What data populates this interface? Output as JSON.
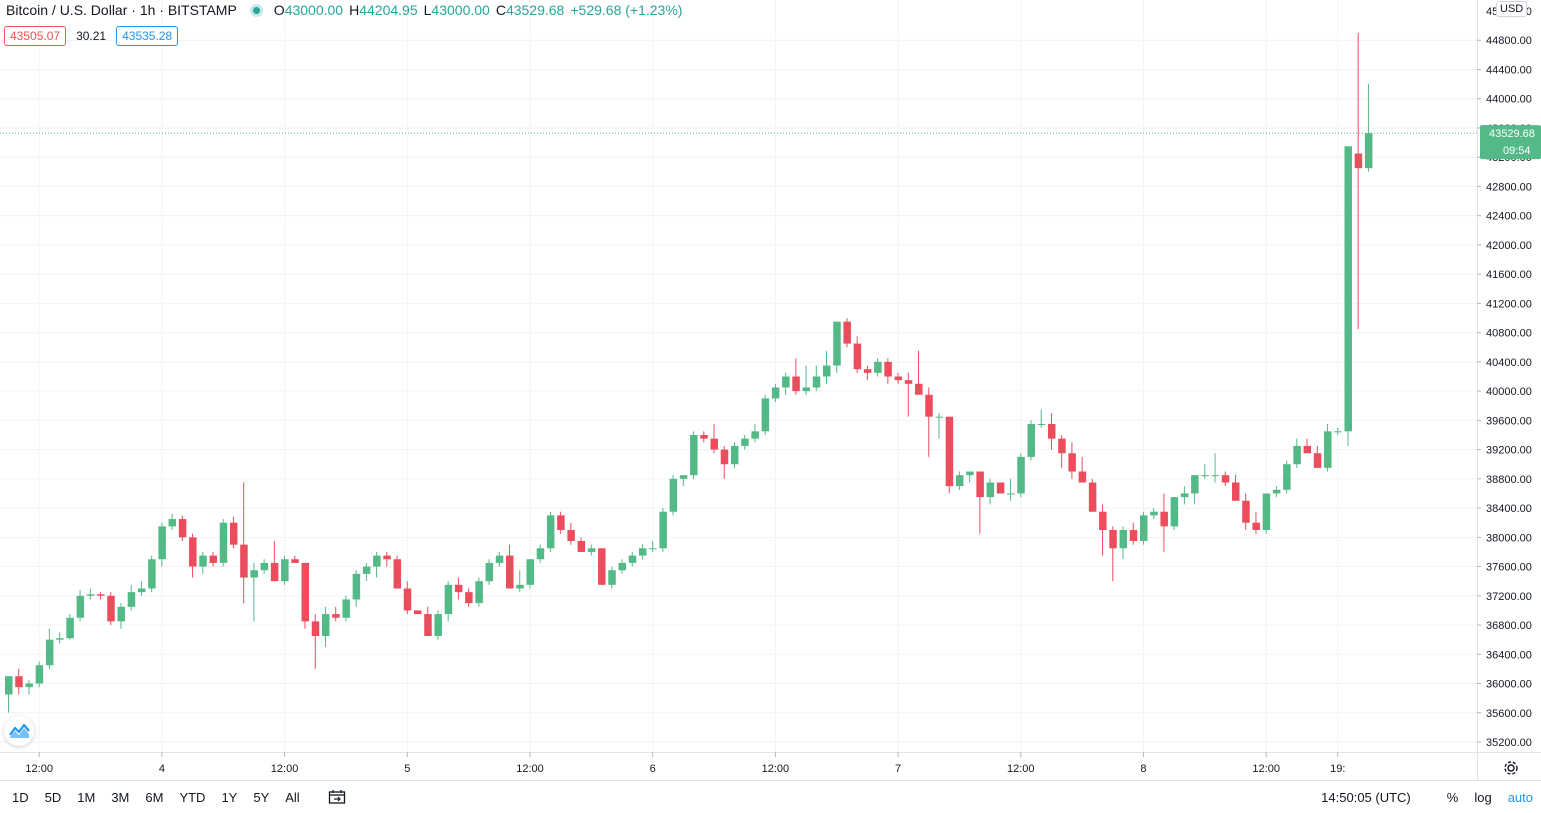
{
  "header": {
    "symbol": "Bitcoin / U.S. Dollar · 1h · BITSTAMP",
    "o_label": "O",
    "o_value": "43000.00",
    "h_label": "H",
    "h_value": "44204.95",
    "l_label": "L",
    "l_value": "43000.00",
    "c_label": "C",
    "c_value": "43529.68",
    "change": "+529.68 (+1.23%)"
  },
  "quote": {
    "bid": "43505.07",
    "spread": "30.21",
    "ask": "43535.28"
  },
  "price_axis": {
    "currency": "USD",
    "last_price": "43529.68",
    "countdown": "09:54",
    "top_partial": "45200.00"
  },
  "bottom_bar": {
    "timeframes": [
      "1D",
      "5D",
      "1M",
      "3M",
      "6M",
      "YTD",
      "1Y",
      "5Y",
      "All"
    ],
    "clock": "14:50:05 (UTC)",
    "percent": "%",
    "log": "log",
    "auto": "auto"
  },
  "colors": {
    "up": "#26a69a",
    "up_body": "#53b987",
    "down": "#eb4d5c",
    "grid": "#f0f3fa",
    "last_price_bg": "#53b987"
  },
  "icons": {
    "calendar": "calendar-range-icon",
    "settings": "gear-icon",
    "logo": "tradingview-logo-icon",
    "status": "market-open-dot-icon"
  },
  "chart_data": {
    "type": "candlestick",
    "title": "Bitcoin / U.S. Dollar · 1h · BITSTAMP",
    "xlabel": "",
    "ylabel": "",
    "ylim": [
      35000,
      45200
    ],
    "y_ticks": [
      35200,
      35600,
      36000,
      36400,
      36800,
      37200,
      37600,
      38000,
      38400,
      38800,
      39200,
      39600,
      40000,
      40400,
      40800,
      41200,
      41600,
      42000,
      42400,
      42800,
      43200,
      43600,
      44000,
      44400,
      44800
    ],
    "x_tick_labels": [
      "12:00",
      "4",
      "12:00",
      "5",
      "12:00",
      "6",
      "12:00",
      "7",
      "12:00",
      "8",
      "12:00",
      "19:"
    ],
    "x_tick_candle_index": [
      3,
      15,
      27,
      39,
      51,
      63,
      75,
      87,
      99,
      111,
      123,
      130
    ],
    "last_price": 43529.68,
    "candles": [
      [
        35850,
        36100,
        35600,
        36100
      ],
      [
        36100,
        36200,
        35850,
        35950
      ],
      [
        35950,
        36050,
        35850,
        36000
      ],
      [
        36000,
        36300,
        35950,
        36250
      ],
      [
        36250,
        36750,
        36200,
        36600
      ],
      [
        36600,
        36700,
        36550,
        36620
      ],
      [
        36620,
        36950,
        36600,
        36900
      ],
      [
        36900,
        37280,
        36850,
        37200
      ],
      [
        37200,
        37300,
        37150,
        37220
      ],
      [
        37220,
        37250,
        37150,
        37200
      ],
      [
        37200,
        37250,
        36800,
        36850
      ],
      [
        36850,
        37100,
        36750,
        37050
      ],
      [
        37050,
        37350,
        37000,
        37250
      ],
      [
        37250,
        37400,
        37200,
        37300
      ],
      [
        37300,
        37750,
        37250,
        37700
      ],
      [
        37700,
        38200,
        37600,
        38150
      ],
      [
        38150,
        38320,
        38100,
        38250
      ],
      [
        38250,
        38300,
        37950,
        38000
      ],
      [
        38000,
        38050,
        37450,
        37600
      ],
      [
        37600,
        37800,
        37500,
        37750
      ],
      [
        37750,
        37800,
        37600,
        37650
      ],
      [
        37650,
        38250,
        37600,
        38200
      ],
      [
        38200,
        38280,
        37850,
        37900
      ],
      [
        37900,
        38750,
        37100,
        37450
      ],
      [
        37450,
        37650,
        36850,
        37550
      ],
      [
        37550,
        37700,
        37500,
        37650
      ],
      [
        37650,
        37950,
        37400,
        37400
      ],
      [
        37400,
        37750,
        37350,
        37700
      ],
      [
        37700,
        37750,
        37650,
        37650
      ],
      [
        37650,
        37650,
        36750,
        36850
      ],
      [
        36850,
        36950,
        36200,
        36650
      ],
      [
        36650,
        37050,
        36500,
        36950
      ],
      [
        36950,
        37050,
        36850,
        36900
      ],
      [
        36900,
        37200,
        36850,
        37150
      ],
      [
        37150,
        37550,
        37050,
        37500
      ],
      [
        37500,
        37650,
        37400,
        37600
      ],
      [
        37600,
        37800,
        37450,
        37750
      ],
      [
        37750,
        37800,
        37600,
        37700
      ],
      [
        37700,
        37750,
        37300,
        37300
      ],
      [
        37300,
        37400,
        36950,
        37000
      ],
      [
        37000,
        37000,
        36950,
        36950
      ],
      [
        36950,
        37050,
        36650,
        36650
      ],
      [
        36650,
        37000,
        36600,
        36950
      ],
      [
        36950,
        37400,
        36850,
        37350
      ],
      [
        37350,
        37450,
        37150,
        37250
      ],
      [
        37250,
        37300,
        37050,
        37100
      ],
      [
        37100,
        37450,
        37050,
        37400
      ],
      [
        37400,
        37700,
        37350,
        37650
      ],
      [
        37650,
        37800,
        37600,
        37750
      ],
      [
        37750,
        37900,
        37300,
        37300
      ],
      [
        37300,
        37550,
        37250,
        37350
      ],
      [
        37350,
        37700,
        37300,
        37700
      ],
      [
        37700,
        37900,
        37650,
        37850
      ],
      [
        37850,
        38350,
        37800,
        38300
      ],
      [
        38300,
        38350,
        38050,
        38100
      ],
      [
        38100,
        38200,
        37900,
        37950
      ],
      [
        37950,
        38000,
        37800,
        37800
      ],
      [
        37800,
        37900,
        37750,
        37850
      ],
      [
        37850,
        37850,
        37350,
        37350
      ],
      [
        37350,
        37600,
        37300,
        37550
      ],
      [
        37550,
        37700,
        37500,
        37650
      ],
      [
        37650,
        37800,
        37600,
        37750
      ],
      [
        37750,
        37900,
        37700,
        37850
      ],
      [
        37850,
        37950,
        37800,
        37850
      ],
      [
        37850,
        38400,
        37800,
        38350
      ],
      [
        38350,
        38850,
        38300,
        38800
      ],
      [
        38800,
        38850,
        38700,
        38850
      ],
      [
        38850,
        39450,
        38800,
        39400
      ],
      [
        39400,
        39450,
        39300,
        39350
      ],
      [
        39350,
        39550,
        39150,
        39200
      ],
      [
        39200,
        39250,
        38800,
        39000
      ],
      [
        39000,
        39300,
        38950,
        39250
      ],
      [
        39250,
        39400,
        39200,
        39350
      ],
      [
        39350,
        39550,
        39300,
        39450
      ],
      [
        39450,
        39950,
        39400,
        39900
      ],
      [
        39900,
        40100,
        39850,
        40050
      ],
      [
        40050,
        40250,
        39950,
        40200
      ],
      [
        40200,
        40450,
        39950,
        40000
      ],
      [
        40000,
        40350,
        39950,
        40050
      ],
      [
        40050,
        40350,
        40000,
        40200
      ],
      [
        40200,
        40550,
        40100,
        40350
      ],
      [
        40350,
        40950,
        40250,
        40950
      ],
      [
        40950,
        41000,
        40600,
        40650
      ],
      [
        40650,
        40750,
        40250,
        40300
      ],
      [
        40300,
        40350,
        40150,
        40250
      ],
      [
        40250,
        40450,
        40200,
        40400
      ],
      [
        40400,
        40450,
        40100,
        40200
      ],
      [
        40200,
        40250,
        40100,
        40150
      ],
      [
        40150,
        40250,
        39650,
        40100
      ],
      [
        40100,
        40550,
        40000,
        39950
      ],
      [
        39950,
        40050,
        39100,
        39650
      ],
      [
        39650,
        39700,
        39350,
        39650
      ],
      [
        39650,
        39650,
        38600,
        38700
      ],
      [
        38700,
        38900,
        38650,
        38850
      ],
      [
        38850,
        38900,
        38750,
        38900
      ],
      [
        38900,
        38900,
        38050,
        38550
      ],
      [
        38550,
        38800,
        38450,
        38750
      ],
      [
        38750,
        38750,
        38600,
        38600
      ],
      [
        38600,
        38800,
        38500,
        38600
      ],
      [
        38600,
        39150,
        38550,
        39100
      ],
      [
        39100,
        39600,
        39050,
        39550
      ],
      [
        39550,
        39750,
        39500,
        39550
      ],
      [
        39550,
        39700,
        39200,
        39350
      ],
      [
        39350,
        39400,
        38950,
        39150
      ],
      [
        39150,
        39300,
        38800,
        38900
      ],
      [
        38900,
        39100,
        38750,
        38750
      ],
      [
        38750,
        38800,
        38350,
        38350
      ],
      [
        38350,
        38450,
        37750,
        38100
      ],
      [
        38100,
        38150,
        37400,
        37850
      ],
      [
        37850,
        38150,
        37700,
        38100
      ],
      [
        38100,
        38200,
        37900,
        37950
      ],
      [
        37950,
        38350,
        37900,
        38300
      ],
      [
        38300,
        38400,
        38250,
        38350
      ],
      [
        38350,
        38600,
        37800,
        38150
      ],
      [
        38150,
        38550,
        38100,
        38550
      ],
      [
        38550,
        38700,
        38450,
        38600
      ],
      [
        38600,
        38850,
        38450,
        38850
      ],
      [
        38850,
        39000,
        38800,
        38850
      ],
      [
        38850,
        39150,
        38750,
        38850
      ],
      [
        38850,
        38900,
        38700,
        38750
      ],
      [
        38750,
        38850,
        38500,
        38500
      ],
      [
        38500,
        38600,
        38100,
        38200
      ],
      [
        38200,
        38350,
        38050,
        38100
      ],
      [
        38100,
        38600,
        38050,
        38600
      ],
      [
        38600,
        38700,
        38550,
        38650
      ],
      [
        38650,
        39050,
        38600,
        39000
      ],
      [
        39000,
        39350,
        38950,
        39250
      ],
      [
        39250,
        39350,
        39150,
        39150
      ],
      [
        39150,
        39250,
        38950,
        38950
      ],
      [
        38950,
        39550,
        38900,
        39450
      ],
      [
        39450,
        39500,
        39400,
        39450
      ],
      [
        39450,
        43350,
        39250,
        43350
      ],
      [
        43250,
        44900,
        40850,
        43050
      ],
      [
        43050,
        44204.95,
        43000,
        43529.68
      ]
    ]
  }
}
